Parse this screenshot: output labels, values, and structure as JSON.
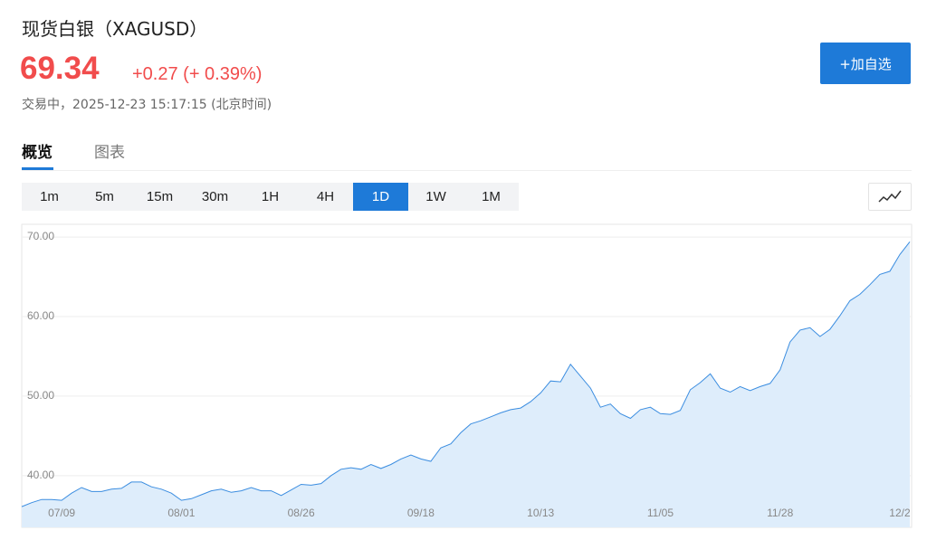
{
  "header": {
    "title": "现货白银（XAGUSD）",
    "price": "69.34",
    "change": "+0.27 (+ 0.39%)",
    "status": "交易中，2025-12-23 15:17:15 (北京时间)",
    "button": "+加自选"
  },
  "tabs": [
    "概览",
    "图表"
  ],
  "intervals": [
    "1m",
    "5m",
    "15m",
    "30m",
    "1H",
    "4H",
    "1D",
    "1W",
    "1M"
  ],
  "chart_data": {
    "type": "area",
    "color": "#3b8de0",
    "fill_color": "#deedfb",
    "grid": true,
    "ylim": [
      33.5,
      71.6
    ],
    "yticks": [
      {
        "value": 40,
        "label": "40.00"
      },
      {
        "value": 50,
        "label": "50.00"
      },
      {
        "value": 60,
        "label": "60.00"
      },
      {
        "value": 70,
        "label": "70.00"
      }
    ],
    "categories": [
      null,
      null,
      null,
      null,
      "07/09",
      null,
      null,
      null,
      null,
      null,
      null,
      null,
      null,
      null,
      null,
      null,
      "08/01",
      null,
      null,
      null,
      null,
      null,
      null,
      null,
      null,
      null,
      null,
      null,
      "08/26",
      null,
      null,
      null,
      null,
      null,
      null,
      null,
      null,
      null,
      null,
      null,
      "09/18",
      null,
      null,
      null,
      null,
      null,
      null,
      null,
      null,
      null,
      null,
      null,
      "10/13",
      null,
      null,
      null,
      null,
      null,
      null,
      null,
      null,
      null,
      null,
      null,
      "11/05",
      null,
      null,
      null,
      null,
      null,
      null,
      null,
      null,
      null,
      null,
      null,
      "11/28",
      null,
      null,
      null,
      null,
      null,
      null,
      null,
      null,
      null,
      null,
      null,
      "12/2",
      null
    ],
    "values": [
      36.1,
      36.6,
      37.0,
      37.0,
      36.9,
      37.8,
      38.5,
      38.0,
      38.0,
      38.3,
      38.4,
      39.2,
      39.2,
      38.6,
      38.3,
      37.8,
      36.9,
      37.1,
      37.6,
      38.1,
      38.3,
      37.9,
      38.1,
      38.5,
      38.1,
      38.1,
      37.5,
      38.2,
      38.9,
      38.8,
      39.0,
      40.0,
      40.8,
      41.0,
      40.8,
      41.4,
      40.9,
      41.4,
      42.1,
      42.6,
      42.1,
      41.8,
      43.5,
      44.0,
      45.4,
      46.5,
      46.9,
      47.4,
      47.9,
      48.3,
      48.5,
      49.3,
      50.4,
      51.9,
      51.8,
      54.0,
      52.5,
      51.0,
      48.6,
      49.0,
      47.8,
      47.2,
      48.3,
      48.6,
      47.8,
      47.7,
      48.2,
      50.8,
      51.7,
      52.8,
      51.0,
      50.5,
      51.2,
      50.7,
      51.2,
      51.6,
      53.3,
      56.8,
      58.3,
      58.6,
      57.5,
      58.4,
      60.1,
      62.0,
      62.8,
      64.0,
      65.3,
      65.7,
      67.8,
      69.4
    ]
  }
}
